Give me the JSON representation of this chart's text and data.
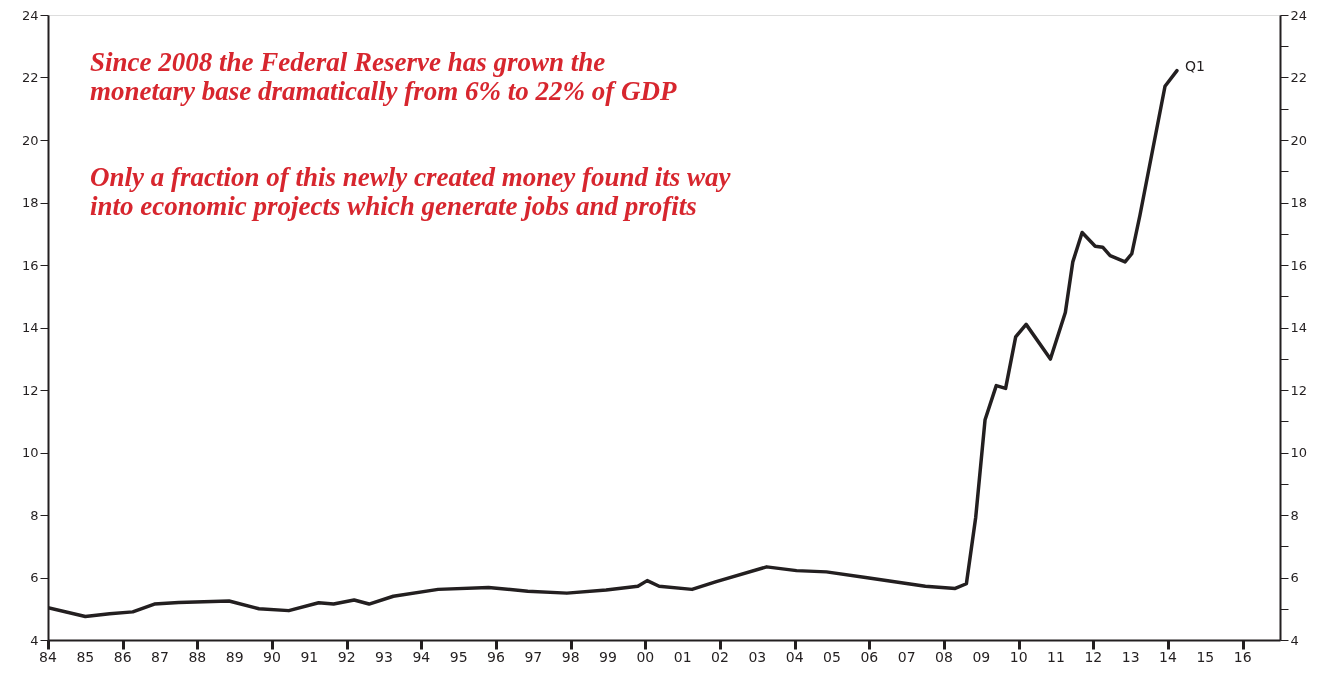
{
  "chart_data": {
    "type": "line",
    "annotations": [
      "Since 2008 the Federal Reserve has grown the\nmonetary base dramatically from 6% to 22% of GDP",
      "Only a fraction of this newly created money found its way\ninto economic projects which generate jobs and profits",
      {
        "text": "Q1",
        "x": 2014.24,
        "y": 22.22
      }
    ],
    "x": [
      1984.0,
      1985.0,
      1985.65,
      1986.27,
      1986.85,
      1987.5,
      1988.85,
      1989.65,
      1990.45,
      1991.25,
      1991.65,
      1992.2,
      1992.6,
      1993.25,
      1994.45,
      1995.8,
      1996.85,
      1997.9,
      1998.95,
      1999.8,
      2000.05,
      2000.37,
      2001.25,
      2001.9,
      2003.25,
      2004.05,
      2004.85,
      2005.9,
      2007.5,
      2008.3,
      2008.6,
      2008.85,
      2009.1,
      2009.4,
      2009.65,
      2009.92,
      2010.2,
      2010.85,
      2011.25,
      2011.45,
      2011.7,
      2012.05,
      2012.25,
      2012.45,
      2012.85,
      2013.03,
      2013.25,
      2013.92,
      2014.24
    ],
    "series": [
      {
        "color": "#231f20",
        "values": [
          5.03,
          4.75,
          4.84,
          4.9,
          5.15,
          5.2,
          5.25,
          5.0,
          4.94,
          5.19,
          5.15,
          5.28,
          5.15,
          5.4,
          5.62,
          5.68,
          5.56,
          5.5,
          5.6,
          5.72,
          5.9,
          5.72,
          5.62,
          5.87,
          6.34,
          6.22,
          6.18,
          6.0,
          5.72,
          5.65,
          5.8,
          7.93,
          11.05,
          12.14,
          12.05,
          13.7,
          14.1,
          12.99,
          14.48,
          16.1,
          17.04,
          16.6,
          16.57,
          16.3,
          16.1,
          16.36,
          17.6,
          21.72,
          22.22
        ]
      }
    ],
    "xlim": [
      1984,
      2017
    ],
    "xticks": [
      {
        "value": 1984,
        "label": "84"
      },
      {
        "value": 1985,
        "label": "85"
      },
      {
        "value": 1986,
        "label": "86"
      },
      {
        "value": 1987,
        "label": "87"
      },
      {
        "value": 1988,
        "label": "88"
      },
      {
        "value": 1989,
        "label": "89"
      },
      {
        "value": 1990,
        "label": "90"
      },
      {
        "value": 1991,
        "label": "91"
      },
      {
        "value": 1992,
        "label": "92"
      },
      {
        "value": 1993,
        "label": "93"
      },
      {
        "value": 1994,
        "label": "94"
      },
      {
        "value": 1995,
        "label": "95"
      },
      {
        "value": 1996,
        "label": "96"
      },
      {
        "value": 1997,
        "label": "97"
      },
      {
        "value": 1998,
        "label": "98"
      },
      {
        "value": 1999,
        "label": "99"
      },
      {
        "value": 2000,
        "label": "00"
      },
      {
        "value": 2001,
        "label": "01"
      },
      {
        "value": 2002,
        "label": "02"
      },
      {
        "value": 2003,
        "label": "03"
      },
      {
        "value": 2004,
        "label": "04"
      },
      {
        "value": 2005,
        "label": "05"
      },
      {
        "value": 2006,
        "label": "06"
      },
      {
        "value": 2007,
        "label": "07"
      },
      {
        "value": 2008,
        "label": "08"
      },
      {
        "value": 2009,
        "label": "09"
      },
      {
        "value": 2010,
        "label": "10"
      },
      {
        "value": 2011,
        "label": "11"
      },
      {
        "value": 2012,
        "label": "12"
      },
      {
        "value": 2013,
        "label": "13"
      },
      {
        "value": 2014,
        "label": "14"
      },
      {
        "value": 2015,
        "label": "15"
      },
      {
        "value": 2016,
        "label": "16"
      },
      {
        "value": 2017,
        "label": null
      }
    ],
    "ylim": [
      4,
      24
    ],
    "yticks": [
      4,
      {
        "value": 5,
        "label": null
      },
      6,
      {
        "value": 7,
        "label": null
      },
      8,
      {
        "value": 9,
        "label": null
      },
      10,
      {
        "value": 11,
        "label": null
      },
      12,
      {
        "value": 13,
        "label": null
      },
      14,
      {
        "value": 15,
        "label": null
      },
      16,
      {
        "value": 17,
        "label": null
      },
      18,
      {
        "value": 19,
        "label": null
      },
      20,
      {
        "value": 21,
        "label": null
      },
      22,
      {
        "value": 23,
        "label": null
      },
      24
    ],
    "y2lim": [
      4,
      24
    ],
    "y2ticks": [
      4,
      {
        "value": 5,
        "label": null
      },
      6,
      {
        "value": 7,
        "label": null
      },
      8,
      {
        "value": 9,
        "label": null
      },
      10,
      {
        "value": 11,
        "label": null
      },
      12,
      {
        "value": 13,
        "label": null
      },
      14,
      {
        "value": 15,
        "label": null
      },
      16,
      {
        "value": 17,
        "label": null
      },
      18,
      {
        "value": 19,
        "label": null
      },
      20,
      {
        "value": 21,
        "label": null
      },
      22,
      {
        "value": 23,
        "label": null
      },
      24
    ],
    "grid": false,
    "line_style": "solid"
  }
}
